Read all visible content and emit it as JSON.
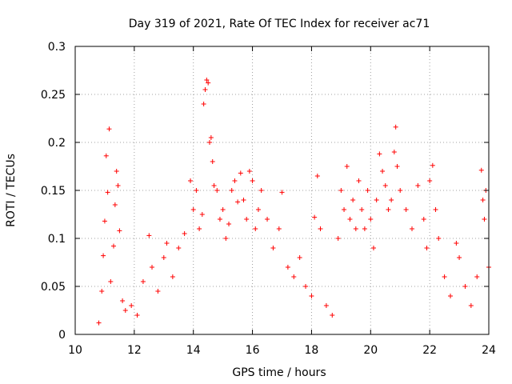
{
  "chart_data": {
    "type": "scatter",
    "title": "Day 319 of 2021, Rate Of TEC Index for receiver ac71",
    "xlabel": "GPS time / hours",
    "ylabel": "ROTI / TECUs",
    "xlim": [
      10,
      24
    ],
    "ylim": [
      0,
      0.3
    ],
    "x_ticks": [
      "10",
      "12",
      "14",
      "16",
      "18",
      "20",
      "22",
      "24"
    ],
    "y_ticks": [
      "0",
      "0.05",
      "0.1",
      "0.15",
      "0.2",
      "0.25",
      "0.3"
    ],
    "grid": true,
    "marker": "+",
    "series_color": "#ff0000",
    "points": [
      [
        10.8,
        0.012
      ],
      [
        10.9,
        0.045
      ],
      [
        10.95,
        0.082
      ],
      [
        11.0,
        0.118
      ],
      [
        11.05,
        0.186
      ],
      [
        11.1,
        0.148
      ],
      [
        11.15,
        0.214
      ],
      [
        11.2,
        0.055
      ],
      [
        11.3,
        0.092
      ],
      [
        11.35,
        0.135
      ],
      [
        11.4,
        0.17
      ],
      [
        11.45,
        0.155
      ],
      [
        11.5,
        0.108
      ],
      [
        11.6,
        0.035
      ],
      [
        11.7,
        0.025
      ],
      [
        11.9,
        0.03
      ],
      [
        12.1,
        0.02
      ],
      [
        12.3,
        0.055
      ],
      [
        12.5,
        0.103
      ],
      [
        12.6,
        0.07
      ],
      [
        12.8,
        0.045
      ],
      [
        13.0,
        0.08
      ],
      [
        13.1,
        0.095
      ],
      [
        13.3,
        0.06
      ],
      [
        13.5,
        0.09
      ],
      [
        13.7,
        0.105
      ],
      [
        13.9,
        0.16
      ],
      [
        14.0,
        0.13
      ],
      [
        14.1,
        0.15
      ],
      [
        14.2,
        0.11
      ],
      [
        14.3,
        0.125
      ],
      [
        14.35,
        0.24
      ],
      [
        14.4,
        0.255
      ],
      [
        14.45,
        0.265
      ],
      [
        14.5,
        0.262
      ],
      [
        14.55,
        0.2
      ],
      [
        14.6,
        0.205
      ],
      [
        14.65,
        0.18
      ],
      [
        14.7,
        0.155
      ],
      [
        14.8,
        0.15
      ],
      [
        14.9,
        0.12
      ],
      [
        15.0,
        0.13
      ],
      [
        15.1,
        0.1
      ],
      [
        15.2,
        0.115
      ],
      [
        15.3,
        0.15
      ],
      [
        15.4,
        0.16
      ],
      [
        15.5,
        0.138
      ],
      [
        15.6,
        0.168
      ],
      [
        15.7,
        0.14
      ],
      [
        15.8,
        0.12
      ],
      [
        15.9,
        0.17
      ],
      [
        16.0,
        0.16
      ],
      [
        16.1,
        0.11
      ],
      [
        16.2,
        0.13
      ],
      [
        16.3,
        0.15
      ],
      [
        16.5,
        0.12
      ],
      [
        16.7,
        0.09
      ],
      [
        16.9,
        0.11
      ],
      [
        17.0,
        0.148
      ],
      [
        17.2,
        0.07
      ],
      [
        17.4,
        0.06
      ],
      [
        17.6,
        0.08
      ],
      [
        17.8,
        0.05
      ],
      [
        18.0,
        0.04
      ],
      [
        18.1,
        0.122
      ],
      [
        18.2,
        0.165
      ],
      [
        18.3,
        0.11
      ],
      [
        18.5,
        0.03
      ],
      [
        18.7,
        0.02
      ],
      [
        18.9,
        0.1
      ],
      [
        19.0,
        0.15
      ],
      [
        19.1,
        0.13
      ],
      [
        19.2,
        0.175
      ],
      [
        19.3,
        0.12
      ],
      [
        19.4,
        0.14
      ],
      [
        19.5,
        0.11
      ],
      [
        19.6,
        0.16
      ],
      [
        19.7,
        0.13
      ],
      [
        19.8,
        0.11
      ],
      [
        19.9,
        0.15
      ],
      [
        20.0,
        0.12
      ],
      [
        20.1,
        0.09
      ],
      [
        20.2,
        0.14
      ],
      [
        20.3,
        0.188
      ],
      [
        20.4,
        0.17
      ],
      [
        20.5,
        0.155
      ],
      [
        20.6,
        0.13
      ],
      [
        20.7,
        0.14
      ],
      [
        20.8,
        0.19
      ],
      [
        20.85,
        0.216
      ],
      [
        20.9,
        0.175
      ],
      [
        21.0,
        0.15
      ],
      [
        21.2,
        0.13
      ],
      [
        21.4,
        0.11
      ],
      [
        21.6,
        0.155
      ],
      [
        21.8,
        0.12
      ],
      [
        21.9,
        0.09
      ],
      [
        22.0,
        0.16
      ],
      [
        22.1,
        0.176
      ],
      [
        22.2,
        0.13
      ],
      [
        22.3,
        0.1
      ],
      [
        22.5,
        0.06
      ],
      [
        22.7,
        0.04
      ],
      [
        22.9,
        0.095
      ],
      [
        23.0,
        0.08
      ],
      [
        23.2,
        0.05
      ],
      [
        23.4,
        0.03
      ],
      [
        23.6,
        0.06
      ],
      [
        23.75,
        0.171
      ],
      [
        23.8,
        0.14
      ],
      [
        23.85,
        0.12
      ],
      [
        23.9,
        0.15
      ],
      [
        24.0,
        0.07
      ]
    ]
  }
}
